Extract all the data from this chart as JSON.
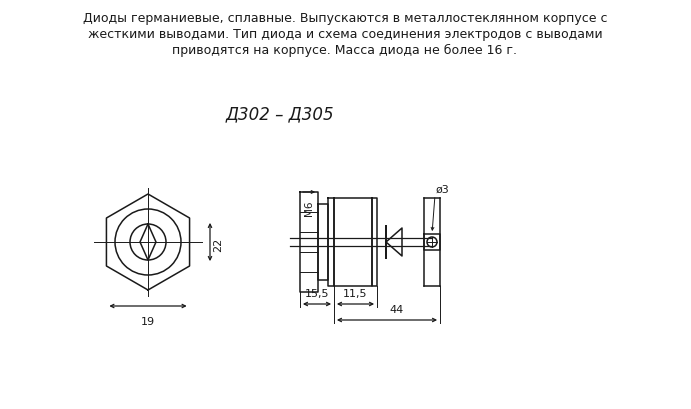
{
  "bg_color": "#ffffff",
  "text_color": "#1a1a1a",
  "line_color": "#1a1a1a",
  "header_line1": "Диоды германиевые, сплавные. Выпускаются в металлостеклянном корпусе с",
  "header_line2": "жесткими выводами. Тип диода и схема соединения электродов с выводами",
  "header_line3": "приводятся на корпусе. Масса диода не более 16 г.",
  "title": "Д302 – Д305",
  "fig_width": 6.91,
  "fig_height": 4.1,
  "dpi": 100
}
